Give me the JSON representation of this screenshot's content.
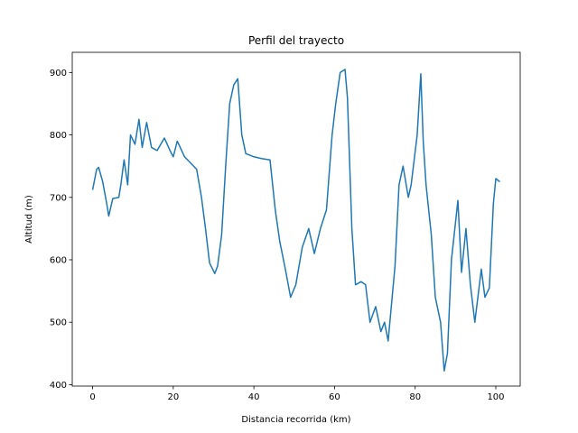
{
  "chart_data": {
    "type": "line",
    "title": "Perfil del trayecto",
    "x_label": "Distancia recorrida (km)",
    "y_label": "Altitud (m)",
    "x": [
      0,
      1,
      1.5,
      2.5,
      3.5,
      4,
      5,
      6.5,
      7,
      7.8,
      8.7,
      9.4,
      10.5,
      11.5,
      12.3,
      13.4,
      14.6,
      16,
      17.8,
      19.2,
      20,
      21,
      22.8,
      25.8,
      27,
      28,
      29,
      30.3,
      31,
      32,
      33,
      34,
      35,
      36,
      37,
      38,
      40,
      42,
      44,
      45.3,
      46.4,
      47.8,
      49.1,
      50.4,
      52,
      53.6,
      55,
      56.5,
      58,
      59.4,
      60.3,
      61.4,
      62.6,
      63.2,
      64.3,
      65.2,
      66.6,
      67.7,
      68.8,
      70.2,
      71.5,
      72.4,
      73.3,
      75,
      76,
      77,
      78.3,
      79,
      80.5,
      81.4,
      82,
      82.7,
      84,
      85,
      86.3,
      87.2,
      88,
      89,
      90.6,
      91.5,
      92.6,
      93.7,
      94.8,
      96.4,
      97.3,
      98.4,
      99.4,
      100,
      101
    ],
    "values": [
      712,
      745,
      748,
      725,
      690,
      670,
      698,
      700,
      720,
      760,
      720,
      800,
      785,
      825,
      780,
      820,
      780,
      775,
      795,
      775,
      765,
      790,
      765,
      745,
      700,
      650,
      595,
      578,
      590,
      640,
      750,
      850,
      880,
      890,
      800,
      770,
      765,
      762,
      760,
      680,
      630,
      585,
      540,
      560,
      620,
      650,
      610,
      650,
      680,
      800,
      850,
      900,
      905,
      860,
      650,
      560,
      565,
      560,
      500,
      525,
      485,
      500,
      470,
      590,
      720,
      750,
      700,
      720,
      800,
      898,
      790,
      720,
      640,
      540,
      500,
      422,
      450,
      600,
      695,
      580,
      650,
      560,
      500,
      585,
      540,
      555,
      690,
      730,
      725
    ],
    "color": "#1f77b4",
    "xlim": [
      -5.05,
      106.05
    ],
    "ylim": [
      397.7,
      932.3
    ],
    "xticks": [
      0,
      20,
      40,
      60,
      80,
      100
    ],
    "yticks": [
      400,
      500,
      600,
      700,
      800,
      900
    ]
  }
}
